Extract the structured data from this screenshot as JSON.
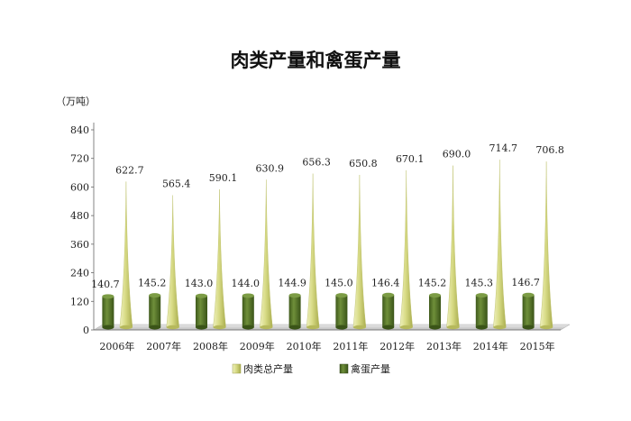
{
  "chart_data": {
    "type": "bar",
    "title": "肉类产量和禽蛋产量",
    "unit": "（万吨）",
    "categories": [
      "2006年",
      "2007年",
      "2008年",
      "2009年",
      "2010年",
      "2011年",
      "2012年",
      "2013年",
      "2014年",
      "2015年"
    ],
    "yticks": [
      "0",
      "120",
      "240",
      "360",
      "480",
      "600",
      "720",
      "840"
    ],
    "ylim": [
      0,
      840
    ],
    "grid": false,
    "legend_position": "bottom",
    "series": [
      {
        "name": "肉类总产量",
        "shape": "cone",
        "color": "#d9dc8c",
        "values": [
          622.7,
          565.4,
          590.1,
          630.9,
          656.3,
          650.8,
          670.1,
          690.0,
          714.7,
          706.8
        ],
        "labels": [
          "622.7",
          "565.4",
          "590.1",
          "630.9",
          "656.3",
          "650.8",
          "670.1",
          "690.0",
          "714.7",
          "706.8"
        ]
      },
      {
        "name": "禽蛋产量",
        "shape": "cylinder",
        "color": "#5b7a2e",
        "values": [
          140.7,
          145.2,
          143.0,
          144.0,
          144.9,
          145.0,
          146.4,
          145.2,
          145.3,
          146.7
        ],
        "labels": [
          "140.7",
          "145.2",
          "143.0",
          "144.0",
          "144.9",
          "145.0",
          "146.4",
          "145.2",
          "145.3",
          "146.7"
        ]
      }
    ]
  }
}
